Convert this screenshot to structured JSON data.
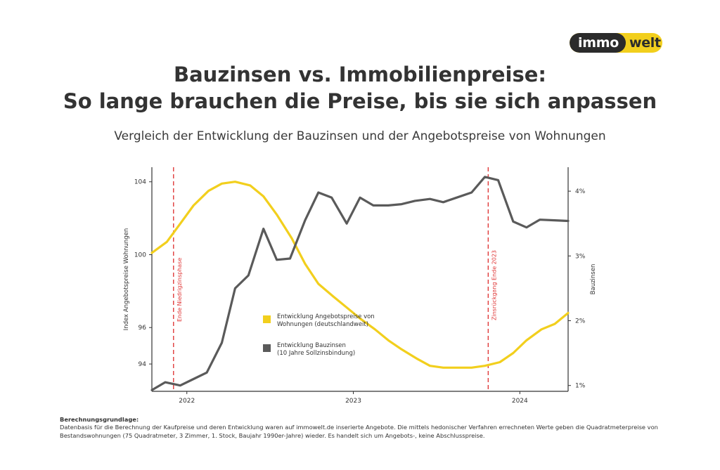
{
  "logo": {
    "left": "immo",
    "right": "welt"
  },
  "header": {
    "title_line1": "Bauzinsen vs. Immobilienpreise:",
    "title_line2": "So lange brauchen die Preise, bis sie sich anpassen",
    "subtitle": "Vergleich der Entwicklung der Bauzinsen und der Angebotspreise von Wohnungen"
  },
  "chart_data": {
    "type": "line",
    "xlabel": "",
    "ylabel": "Index Angebotspreise Wohnungen",
    "y2label": "Bauzinsen",
    "xlim": [
      2021.79,
      2024.29
    ],
    "ylim": [
      92.5,
      104.8
    ],
    "y2lim": [
      0.91,
      4.37
    ],
    "x_ticks": [
      2022,
      2023,
      2024
    ],
    "x_tick_labels": [
      "2022",
      "2023",
      "2024"
    ],
    "y_ticks": [
      94,
      96,
      100,
      104
    ],
    "y_tick_labels": [
      "94",
      "96",
      "100",
      "104"
    ],
    "y2_ticks": [
      1,
      2,
      3,
      4
    ],
    "y2_tick_labels": [
      "1%",
      "2%",
      "3%",
      "4%"
    ],
    "grid": false,
    "legend_position": "center",
    "series": [
      {
        "name": "Entwicklung Angebotspreise von Wohnungen (deutschlandweit)",
        "axis": "left",
        "color": "#f2cf1d",
        "x": [
          2021.79,
          2021.88,
          2021.96,
          2022.04,
          2022.13,
          2022.21,
          2022.29,
          2022.38,
          2022.46,
          2022.54,
          2022.63,
          2022.71,
          2022.79,
          2022.88,
          2022.96,
          2023.04,
          2023.13,
          2023.21,
          2023.29,
          2023.38,
          2023.46,
          2023.54,
          2023.63,
          2023.71,
          2023.79,
          2023.88,
          2023.96,
          2024.04,
          2024.13,
          2024.21,
          2024.29
        ],
        "y": [
          100.1,
          100.7,
          101.7,
          102.7,
          103.5,
          103.9,
          104.0,
          103.8,
          103.2,
          102.2,
          100.9,
          99.5,
          98.4,
          97.7,
          97.1,
          96.5,
          95.9,
          95.3,
          94.8,
          94.3,
          93.9,
          93.8,
          93.8,
          93.8,
          93.9,
          94.1,
          94.6,
          95.3,
          95.9,
          96.2,
          96.8
        ]
      },
      {
        "name": "Entwicklung Bauzinsen (10 Jahre Sollzinsbindung)",
        "axis": "right",
        "color": "#5a5a5a",
        "x": [
          2021.79,
          2021.87,
          2021.96,
          2022.04,
          2022.12,
          2022.21,
          2022.29,
          2022.37,
          2022.46,
          2022.54,
          2022.62,
          2022.71,
          2022.79,
          2022.87,
          2022.96,
          2023.04,
          2023.12,
          2023.21,
          2023.29,
          2023.37,
          2023.46,
          2023.54,
          2023.62,
          2023.71,
          2023.79,
          2023.87,
          2023.96,
          2024.04,
          2024.12,
          2024.21,
          2024.29
        ],
        "y": [
          0.93,
          1.05,
          1.0,
          1.1,
          1.2,
          1.66,
          2.5,
          2.7,
          3.42,
          2.94,
          2.96,
          3.55,
          3.98,
          3.9,
          3.5,
          3.9,
          3.78,
          3.78,
          3.8,
          3.85,
          3.88,
          3.83,
          3.9,
          3.98,
          4.22,
          4.17,
          3.53,
          3.44,
          3.56,
          3.55,
          3.54
        ]
      }
    ],
    "annotations": [
      {
        "x": 2021.92,
        "label": "Ende Niedrigzinsphase",
        "color": "#e03a3a"
      },
      {
        "x": 2023.81,
        "label": "Zinsrückgang Ende 2023",
        "color": "#e03a3a"
      }
    ]
  },
  "footnote": {
    "heading": "Berechnungsgrundlage:",
    "text": "Datenbasis für die Berechnung der Kaufpreise und deren Entwicklung waren auf immowelt.de inserierte Angebote. Die mittels hedonischer Verfahren errechneten Werte geben die Quadratmeterpreise von Bestandswohnungen (75 Quadratmeter, 3 Zimmer, 1. Stock, Baujahr 1990er-Jahre) wieder. Es handelt sich um Angebots-, keine Abschlusspreise."
  }
}
